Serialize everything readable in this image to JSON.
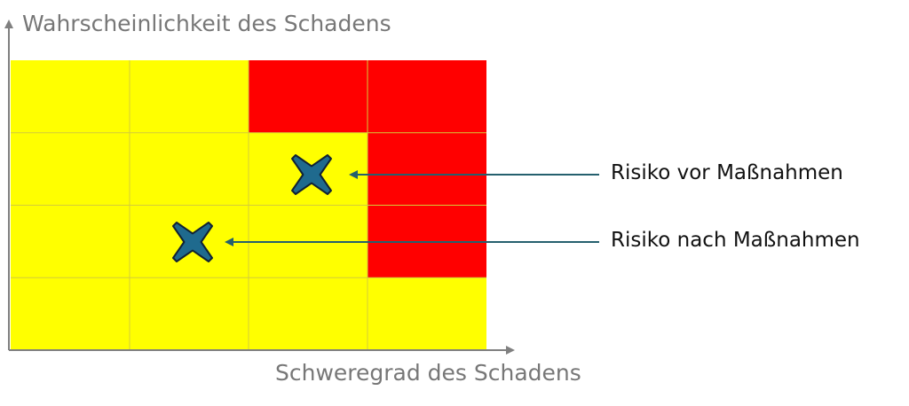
{
  "y_axis_label": "Wahrscheinlichkeit des Schadens",
  "x_axis_label": "Schweregrad des Schadens",
  "colors": {
    "low": "#ffff00",
    "high": "#ff0000",
    "grid": "#d4cc3a",
    "marker": "#1f6a8e",
    "arrow": "#25606e",
    "axis": "#808080"
  },
  "matrix": [
    [
      "low",
      "low",
      "high",
      "high"
    ],
    [
      "low",
      "low",
      "low",
      "high"
    ],
    [
      "low",
      "low",
      "low",
      "high"
    ],
    [
      "low",
      "low",
      "low",
      "low"
    ]
  ],
  "markers": [
    {
      "label": "Risiko vor Maßnahmen",
      "row": 1,
      "col": 2
    },
    {
      "label": "Risiko nach Maßnahmen",
      "row": 2,
      "col": 1
    }
  ]
}
